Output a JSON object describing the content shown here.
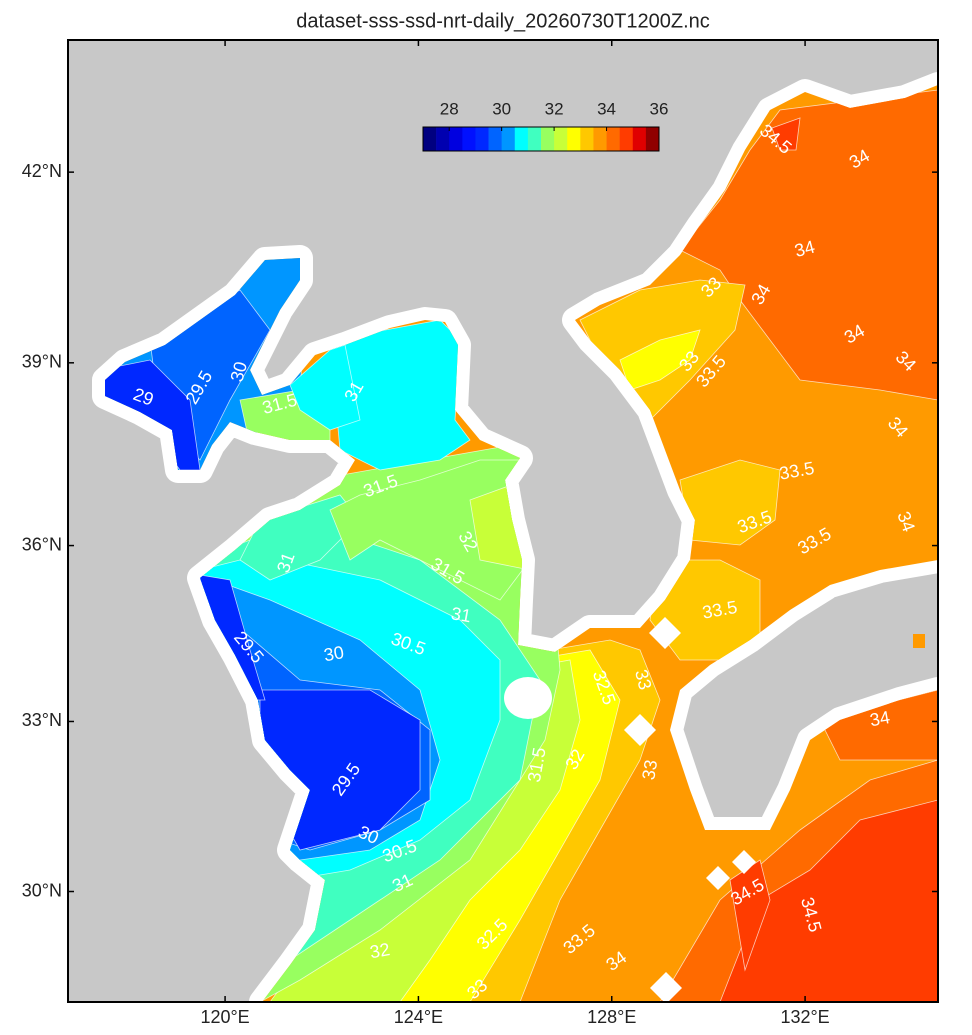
{
  "title": "dataset-sss-ssd-nrt-daily_20260730T1200Z.nc",
  "map": {
    "projection": "mercator",
    "xlim": [
      116.75,
      134.75
    ],
    "ylim": [
      28,
      44
    ],
    "xticks": [
      {
        "value": 120,
        "label": "120°E"
      },
      {
        "value": 124,
        "label": "124°E"
      },
      {
        "value": 128,
        "label": "128°E"
      },
      {
        "value": 132,
        "label": "132°E"
      }
    ],
    "yticks": [
      {
        "value": 30,
        "label": "30°N"
      },
      {
        "value": 33,
        "label": "33°N"
      },
      {
        "value": 36,
        "label": "36°N"
      },
      {
        "value": 39,
        "label": "39°N"
      },
      {
        "value": 42,
        "label": "42°N"
      }
    ]
  },
  "colorbar": {
    "range": [
      27,
      36
    ],
    "ticks": [
      28,
      30,
      32,
      34,
      36
    ],
    "colors": [
      "#000080",
      "#0000b0",
      "#0000e0",
      "#0010ff",
      "#0028ff",
      "#0064ff",
      "#0096ff",
      "#00ffff",
      "#40ffc0",
      "#98ff60",
      "#c8ff38",
      "#ffff00",
      "#ffc800",
      "#ff9a00",
      "#ff6a00",
      "#ff3c00",
      "#e00000",
      "#900000"
    ]
  },
  "contour_labels": [
    34.5,
    34,
    34,
    33,
    34,
    34,
    34,
    33,
    33.5,
    34,
    33.5,
    33.5,
    34,
    33.5,
    33.5,
    29,
    29.5,
    30,
    31.5,
    31,
    31.5,
    32,
    31,
    31.5,
    31,
    29.5,
    30,
    30.5,
    32.5,
    33,
    34,
    31.5,
    32,
    29.5,
    33,
    30,
    30.5,
    31,
    34.5,
    34.5,
    32.5,
    33.5,
    32,
    34,
    33
  ]
}
